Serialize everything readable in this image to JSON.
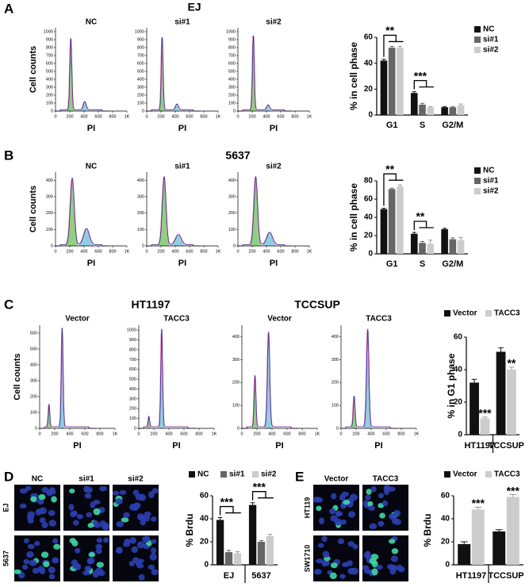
{
  "chart_data": [
    {
      "type": "bar",
      "ylabel": "% in cell phase",
      "categories": [
        "G1",
        "S",
        "G2/M"
      ],
      "series": [
        {
          "name": "NC",
          "color": "#111111",
          "values": [
            42,
            17,
            6
          ],
          "errors": [
            1,
            1,
            0.5
          ]
        },
        {
          "name": "si#1",
          "color": "#666666",
          "values": [
            52,
            8,
            6
          ],
          "errors": [
            1,
            1,
            0.5
          ]
        },
        {
          "name": "si#2",
          "color": "#cccccc",
          "values": [
            52,
            6,
            7.5
          ],
          "errors": [
            1,
            0.5,
            1
          ]
        }
      ],
      "ylim": [
        0,
        60
      ],
      "yticks": [
        0,
        20,
        40,
        60
      ],
      "legend": "right",
      "annotations": [
        "**",
        "***"
      ]
    },
    {
      "type": "bar",
      "ylabel": "% in cell phase",
      "categories": [
        "G1",
        "S",
        "G2/M"
      ],
      "series": [
        {
          "name": "NC",
          "color": "#111111",
          "values": [
            49,
            22,
            27
          ],
          "errors": [
            1,
            1.5,
            1
          ]
        },
        {
          "name": "si#1",
          "color": "#666666",
          "values": [
            71,
            12,
            16
          ],
          "errors": [
            1,
            1.5,
            1.5
          ]
        },
        {
          "name": "si#2",
          "color": "#cccccc",
          "values": [
            74,
            11,
            15
          ],
          "errors": [
            1.5,
            4,
            3
          ]
        }
      ],
      "ylim": [
        0,
        80
      ],
      "yticks": [
        0,
        20,
        40,
        60,
        80
      ],
      "legend": "right",
      "annotations": [
        "**",
        "**"
      ]
    },
    {
      "type": "bar",
      "ylabel": "% in G1 phase",
      "categories": [
        "HT1197",
        "TCCSUP"
      ],
      "series": [
        {
          "name": "Vector",
          "color": "#111111",
          "values": [
            32,
            51
          ],
          "errors": [
            2,
            2.5
          ]
        },
        {
          "name": "TACC3",
          "color": "#cccccc",
          "values": [
            10,
            40
          ],
          "errors": [
            0.8,
            1.5
          ]
        }
      ],
      "ylim": [
        0,
        60
      ],
      "yticks": [
        0,
        20,
        40,
        60
      ],
      "legend": "top",
      "annotations": [
        "***",
        "**"
      ]
    },
    {
      "type": "bar",
      "ylabel": "% Brdu",
      "categories": [
        "EJ",
        "5637"
      ],
      "series": [
        {
          "name": "NC",
          "color": "#111111",
          "values": [
            39,
            52
          ],
          "errors": [
            2,
            2
          ]
        },
        {
          "name": "si#1",
          "color": "#666666",
          "values": [
            11,
            20
          ],
          "errors": [
            1.5,
            1
          ]
        },
        {
          "name": "si#2",
          "color": "#cccccc",
          "values": [
            10,
            25
          ],
          "errors": [
            1.5,
            1.5
          ]
        }
      ],
      "ylim": [
        0,
        60
      ],
      "yticks": [
        0,
        20,
        40,
        60
      ],
      "legend": "top",
      "annotations": [
        "***",
        "***"
      ]
    },
    {
      "type": "bar",
      "ylabel": "% Brdu",
      "categories": [
        "HT1197",
        "TCCSUP"
      ],
      "series": [
        {
          "name": "Vector",
          "color": "#111111",
          "values": [
            18,
            29
          ],
          "errors": [
            2,
            1.5
          ]
        },
        {
          "name": "TACC3",
          "color": "#cccccc",
          "values": [
            48,
            59
          ],
          "errors": [
            2,
            2
          ]
        }
      ],
      "ylim": [
        0,
        60
      ],
      "yticks": [
        0,
        20,
        40,
        60
      ],
      "legend": "top",
      "annotations": [
        "***",
        "***"
      ]
    }
  ],
  "figure": {
    "letters": [
      "A",
      "B",
      "C",
      "D",
      "E"
    ],
    "titles": [
      "EJ",
      "5637",
      "HT1197",
      "TCCSUP"
    ],
    "flow": {
      "ylabel": "Cell counts",
      "xlabel": "PI",
      "xlim": [
        0,
        1000
      ],
      "xticks": [
        0,
        200,
        400,
        600,
        800,
        {
          "value": 1000,
          "label": "1K"
        }
      ],
      "rows": [
        [
          {
            "label": "NC",
            "ylim": [
              0,
              1050
            ],
            "yticks": [
              0,
              100,
              200,
              300,
              400,
              500,
              600,
              700,
              800,
              900,
              1000
            ]
          },
          {
            "label": "si#1",
            "ylim": [
              0,
              1050
            ],
            "yticks": [
              0,
              100,
              200,
              300,
              400,
              500,
              600,
              700,
              800,
              900,
              1000
            ]
          },
          {
            "label": "si#2",
            "ylim": [
              0,
              1050
            ],
            "yticks": [
              0,
              100,
              200,
              300,
              400,
              500,
              600,
              700,
              800,
              900,
              1000
            ]
          }
        ],
        [
          {
            "label": "NC",
            "ylim": [
              0,
              450
            ],
            "yticks": [
              0,
              100,
              200,
              300,
              400
            ]
          },
          {
            "label": "si#1",
            "ylim": [
              0,
              450
            ],
            "yticks": [
              0,
              100,
              200,
              300,
              400
            ]
          },
          {
            "label": "si#2",
            "ylim": [
              0,
              450
            ],
            "yticks": [
              0,
              100,
              200,
              300,
              400
            ]
          }
        ],
        [
          {
            "label": "Vector",
            "ylim": [
              0,
              650
            ],
            "yticks": [
              0,
              100,
              200,
              300,
              400,
              500,
              600
            ]
          },
          {
            "label": "TACC3",
            "ylim": [
              0,
              1050
            ],
            "yticks": [
              0,
              100,
              200,
              300,
              400,
              500,
              600,
              700,
              800,
              900,
              1000
            ]
          },
          {
            "label": "Vector",
            "ylim": [
              0,
              450
            ],
            "yticks": [
              0,
              100,
              200,
              300,
              400
            ]
          },
          {
            "label": "TACC3",
            "ylim": [
              0,
              450
            ],
            "yticks": [
              0,
              100,
              200,
              300,
              400
            ]
          }
        ]
      ]
    },
    "images": [
      {
        "columns": [
          "NC",
          "si#1",
          "si#2"
        ],
        "rows": [
          "EJ",
          "5637"
        ]
      },
      {
        "columns": [
          "Vector",
          "TACC3"
        ],
        "rows": [
          "HT119",
          "SW1710"
        ]
      }
    ]
  }
}
